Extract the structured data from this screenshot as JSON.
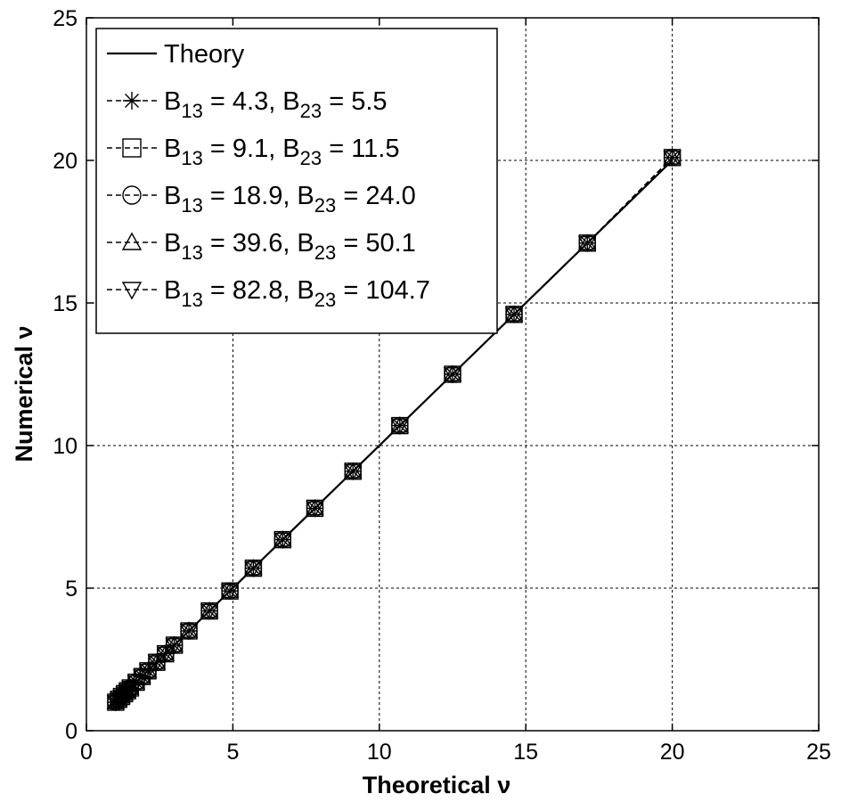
{
  "chart_data": {
    "type": "line",
    "xlabel": "Theoretical ν",
    "ylabel": "Numerical ν",
    "xlim": [
      0,
      25
    ],
    "ylim": [
      0,
      25
    ],
    "xticks": [
      "0",
      "5",
      "10",
      "15",
      "20",
      "25"
    ],
    "yticks": [
      "0",
      "5",
      "10",
      "15",
      "20",
      "25"
    ],
    "grid": true,
    "legend_position": "top-left",
    "x": [
      1.0,
      1.1,
      1.2,
      1.3,
      1.4,
      1.5,
      1.7,
      1.9,
      2.1,
      2.4,
      2.7,
      3.0,
      3.5,
      4.2,
      4.9,
      5.7,
      6.7,
      7.8,
      9.1,
      10.7,
      12.5,
      14.6,
      17.1,
      20.0
    ],
    "series": [
      {
        "name": "Theory",
        "style": "solid",
        "marker": "none",
        "values": [
          1.0,
          1.1,
          1.2,
          1.3,
          1.4,
          1.5,
          1.7,
          1.9,
          2.1,
          2.4,
          2.7,
          3.0,
          3.5,
          4.2,
          4.9,
          5.7,
          6.7,
          7.8,
          9.1,
          10.7,
          12.5,
          14.6,
          17.1,
          20.0
        ]
      },
      {
        "name_parts": [
          "B",
          "13",
          " = 4.3, B",
          "23",
          " = 5.5"
        ],
        "style": "dashed",
        "marker": "asterisk",
        "values": [
          1.0,
          1.1,
          1.2,
          1.3,
          1.4,
          1.5,
          1.7,
          1.9,
          2.1,
          2.4,
          2.7,
          3.0,
          3.5,
          4.2,
          4.9,
          5.7,
          6.7,
          7.8,
          9.1,
          10.7,
          12.5,
          14.6,
          17.1,
          20.1
        ]
      },
      {
        "name_parts": [
          "B",
          "13",
          " = 9.1, B",
          "23",
          " = 11.5"
        ],
        "style": "dashed",
        "marker": "square",
        "values": [
          1.0,
          1.1,
          1.2,
          1.3,
          1.4,
          1.5,
          1.7,
          1.9,
          2.1,
          2.4,
          2.7,
          3.0,
          3.5,
          4.2,
          4.9,
          5.7,
          6.7,
          7.8,
          9.1,
          10.7,
          12.5,
          14.6,
          17.1,
          20.1
        ]
      },
      {
        "name_parts": [
          "B",
          "13",
          " = 18.9, B",
          "23",
          " = 24.0"
        ],
        "style": "dashed",
        "marker": "circle",
        "values": [
          1.0,
          1.1,
          1.2,
          1.3,
          1.4,
          1.5,
          1.7,
          1.9,
          2.1,
          2.4,
          2.7,
          3.0,
          3.5,
          4.2,
          4.9,
          5.7,
          6.7,
          7.8,
          9.1,
          10.7,
          12.5,
          14.6,
          17.1,
          20.1
        ]
      },
      {
        "name_parts": [
          "B",
          "13",
          " = 39.6, B",
          "23",
          " = 50.1"
        ],
        "style": "dashed",
        "marker": "triangle-up",
        "values": [
          1.0,
          1.1,
          1.2,
          1.3,
          1.4,
          1.5,
          1.7,
          1.9,
          2.1,
          2.4,
          2.7,
          3.0,
          3.5,
          4.2,
          4.9,
          5.7,
          6.7,
          7.8,
          9.1,
          10.7,
          12.5,
          14.6,
          17.1,
          20.1
        ]
      },
      {
        "name_parts": [
          "B",
          "13",
          " = 82.8, B",
          "23",
          " = 104.7"
        ],
        "style": "dashed",
        "marker": "triangle-down",
        "values": [
          1.0,
          1.1,
          1.2,
          1.3,
          1.4,
          1.5,
          1.7,
          1.9,
          2.1,
          2.4,
          2.7,
          3.0,
          3.5,
          4.2,
          4.9,
          5.7,
          6.7,
          7.8,
          9.1,
          10.7,
          12.5,
          14.6,
          17.1,
          20.1
        ]
      }
    ],
    "colors": {
      "line": "#000000",
      "grid": "#000000",
      "background": "#ffffff"
    }
  }
}
